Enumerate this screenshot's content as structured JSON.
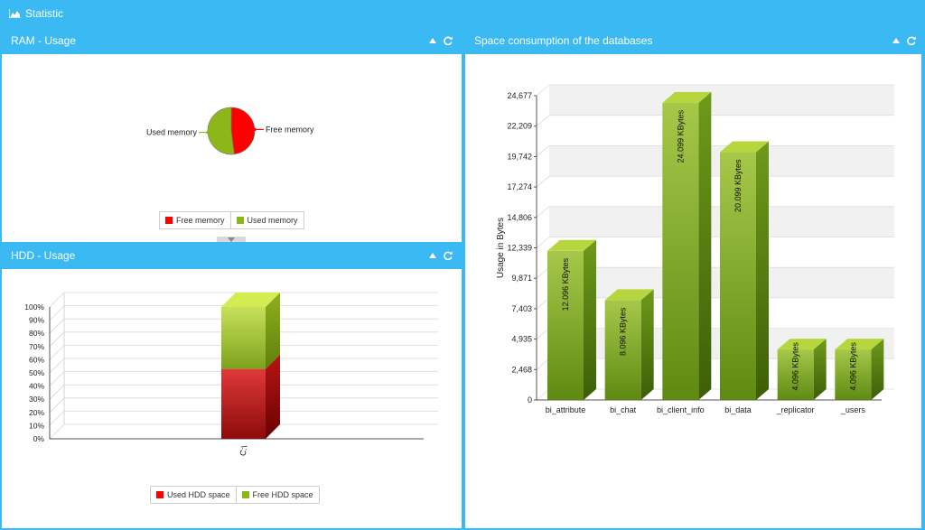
{
  "app": {
    "title": "Statistic",
    "title_icon": "area-chart-icon"
  },
  "ram": {
    "title": "RAM - Usage",
    "legend": [
      {
        "label": "Free memory",
        "color": "#ff0000"
      },
      {
        "label": "Used memory",
        "color": "#8db619"
      }
    ],
    "chart_data": {
      "type": "pie",
      "slices": [
        {
          "label": "Free memory",
          "value": 48,
          "color": "#ff0000"
        },
        {
          "label": "Used memory",
          "value": 52,
          "color": "#8db619"
        }
      ]
    }
  },
  "hdd": {
    "title": "HDD - Usage",
    "legend": [
      {
        "label": "Used HDD space",
        "color": "#ff0000"
      },
      {
        "label": "Free HDD space",
        "color": "#8db619"
      }
    ],
    "chart_data": {
      "type": "bar",
      "stacked": true,
      "categories": [
        "C:\\"
      ],
      "series": [
        {
          "name": "Used HDD space",
          "values": [
            53
          ],
          "color": "#d12a2a"
        },
        {
          "name": "Free HDD space",
          "values": [
            47
          ],
          "color": "#a5c43a"
        }
      ],
      "ylim": [
        0,
        100
      ],
      "yticks": [
        "0%",
        "10%",
        "20%",
        "30%",
        "40%",
        "50%",
        "60%",
        "70%",
        "80%",
        "90%",
        "100%"
      ]
    }
  },
  "db": {
    "title": "Space consumption of the databases",
    "chart_data": {
      "type": "bar",
      "ylabel": "Usage in Bytes",
      "ylim": [
        0,
        24677
      ],
      "yticks": [
        "0",
        "2,468",
        "4,935",
        "7,403",
        "9,871",
        "12,339",
        "14,806",
        "17,274",
        "19,742",
        "22,209",
        "24,677"
      ],
      "categories": [
        "bi_attribute",
        "bi_chat",
        "bi_client_info",
        "bi_data",
        "_replicator",
        "_users"
      ],
      "values": [
        12096,
        8096,
        24099,
        20099,
        4096,
        4096
      ],
      "labels": [
        "12.096 KBytes",
        "8.096 KBytes",
        "24.099 KBytes",
        "20.099 KBytes",
        "4.096 KBytes",
        "4.096 KBytes"
      ],
      "color": "#8db619"
    }
  }
}
